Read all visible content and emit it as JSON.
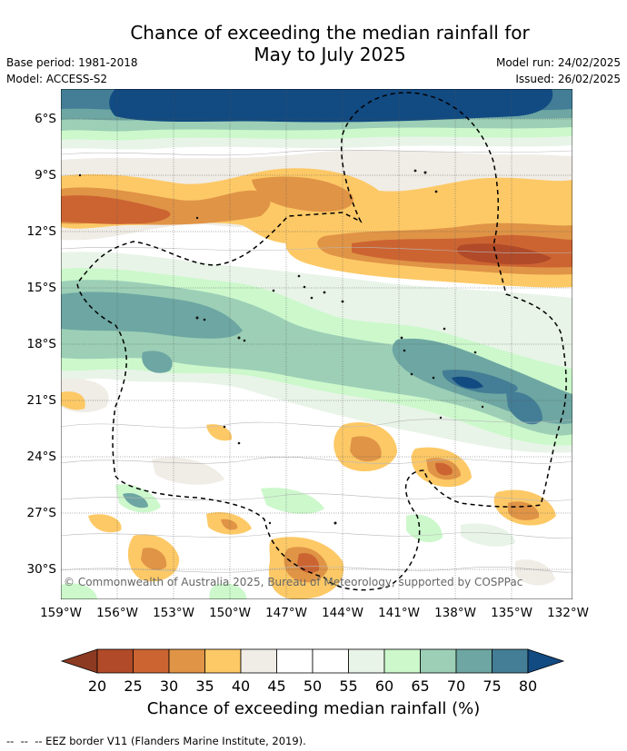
{
  "title_line1": "Chance of exceeding the median rainfall for",
  "title_line2": "May to July 2025",
  "base_period": "Base period: 1981-2018",
  "model": "Model: ACCESS-S2",
  "model_run": "Model run: 24/02/2025",
  "issued": "Issued: 26/02/2025",
  "copyright": "© Commonwealth of Australia 2025, Bureau of Meteorology, supported by COSPPac",
  "lat_labels": [
    "6°S",
    "9°S",
    "12°S",
    "15°S",
    "18°S",
    "21°S",
    "24°S",
    "27°S",
    "30°S"
  ],
  "lon_labels": [
    "159°W",
    "156°W",
    "153°W",
    "150°W",
    "147°W",
    "144°W",
    "141°W",
    "138°W",
    "135°W",
    "132°W"
  ],
  "colorbar": {
    "ticks": [
      "20",
      "25",
      "30",
      "35",
      "40",
      "45",
      "50",
      "55",
      "60",
      "65",
      "70",
      "75",
      "80"
    ],
    "label": "Chance of exceeding median rainfall (%)",
    "colors": {
      "lt20": "#8c3a22",
      "20_25": "#b04a28",
      "25_30": "#cc6432",
      "30_35": "#e09446",
      "35_40": "#fdc966",
      "40_45": "#f0ece6",
      "45_50": "#ffffff",
      "50_55": "#ffffff",
      "55_60": "#e8f4e8",
      "60_65": "#ccf8cc",
      "65_70": "#9ccfb6",
      "70_75": "#6da6a2",
      "75_80": "#437d96",
      "gt80": "#124a82"
    }
  },
  "legend_text": "--  --  -- EEZ border V11 (Flanders Marine Institute, 2019)."
}
